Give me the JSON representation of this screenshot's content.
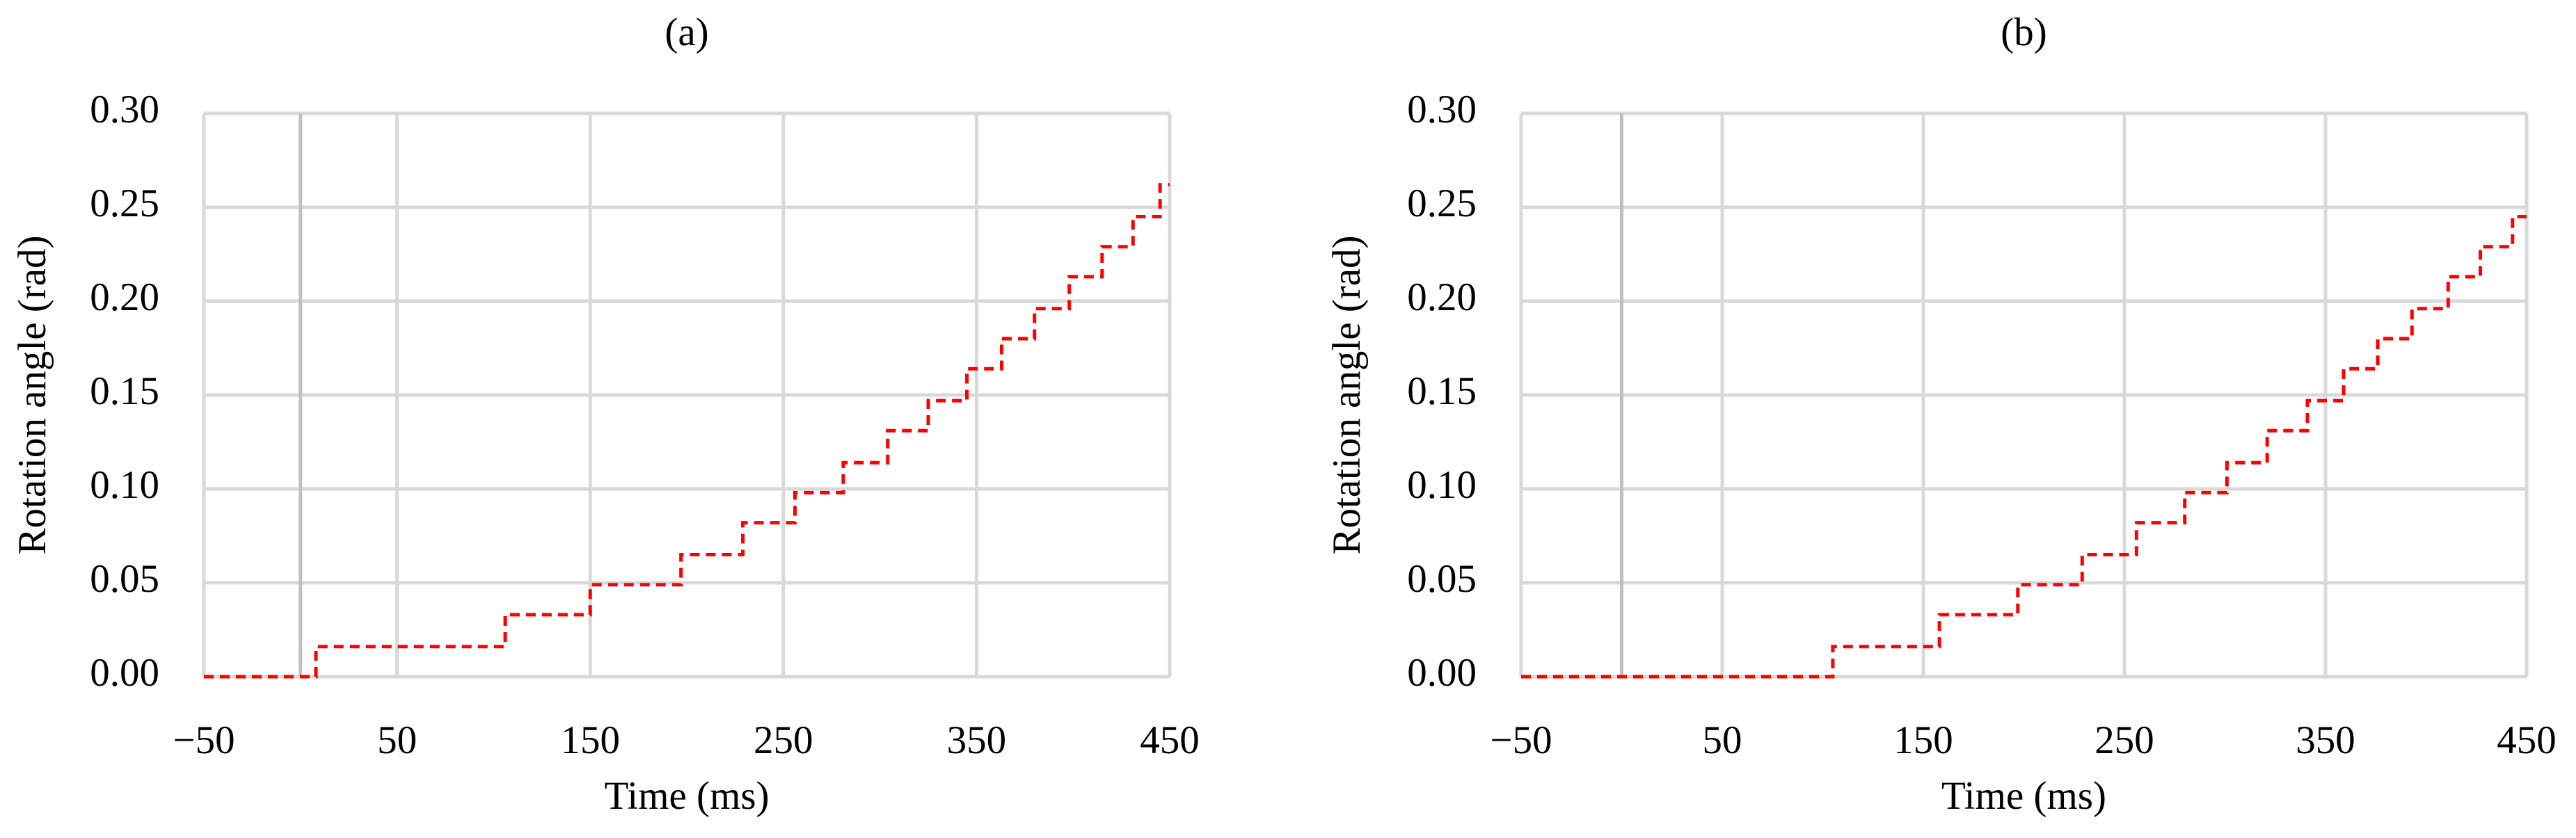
{
  "chart_data": [
    {
      "type": "line",
      "title": "(a)",
      "xlabel": "Time (ms)",
      "ylabel": "Rotation angle (rad)",
      "x": [
        -50,
        8,
        8,
        106,
        106,
        150,
        150,
        197,
        197,
        229,
        229,
        256,
        256,
        281,
        281,
        304,
        304,
        325,
        325,
        345,
        345,
        363,
        363,
        380,
        380,
        398,
        398,
        415,
        415,
        431,
        431,
        445,
        445,
        450
      ],
      "values": [
        0,
        0,
        0.016,
        0.016,
        0.033,
        0.033,
        0.049,
        0.049,
        0.065,
        0.065,
        0.082,
        0.082,
        0.098,
        0.098,
        0.114,
        0.114,
        0.131,
        0.131,
        0.147,
        0.147,
        0.164,
        0.164,
        0.18,
        0.18,
        0.196,
        0.196,
        0.213,
        0.213,
        0.229,
        0.229,
        0.245,
        0.245,
        0.262,
        0.262
      ],
      "color": "#ff0000",
      "dashed": true,
      "grid": true,
      "xlim": [
        -50,
        450
      ],
      "xticks": [
        {
          "value": -50,
          "label": "−50"
        },
        50,
        150,
        250,
        350,
        450
      ],
      "ylim": [
        0,
        0.3
      ],
      "yticks": [
        {
          "value": 0,
          "label": "0.00"
        },
        {
          "value": 0.05,
          "label": "0.05"
        },
        {
          "value": 0.1,
          "label": "0.10"
        },
        {
          "value": 0.15,
          "label": "0.15"
        },
        {
          "value": 0.2,
          "label": "0.20"
        },
        {
          "value": 0.25,
          "label": "0.25"
        },
        {
          "value": 0.3,
          "label": "0.30"
        }
      ]
    },
    {
      "type": "line",
      "title": "(b)",
      "xlabel": "Time (ms)",
      "ylabel": "Rotation angle (rad)",
      "x": [
        -50,
        105,
        105,
        158,
        158,
        197,
        197,
        229,
        229,
        256,
        256,
        280,
        280,
        301,
        301,
        321,
        321,
        341,
        341,
        359,
        359,
        376,
        376,
        393,
        393,
        411,
        411,
        427,
        427,
        443,
        443,
        450
      ],
      "values": [
        0,
        0,
        0.016,
        0.016,
        0.033,
        0.033,
        0.049,
        0.049,
        0.065,
        0.065,
        0.082,
        0.082,
        0.098,
        0.098,
        0.114,
        0.114,
        0.131,
        0.131,
        0.147,
        0.147,
        0.164,
        0.164,
        0.18,
        0.18,
        0.196,
        0.196,
        0.213,
        0.213,
        0.229,
        0.229,
        0.245,
        0.245
      ],
      "color": "#ff0000",
      "dashed": true,
      "grid": true,
      "xlim": [
        -50,
        450
      ],
      "xticks": [
        {
          "value": -50,
          "label": "−50"
        },
        50,
        150,
        250,
        350,
        450
      ],
      "ylim": [
        0,
        0.3
      ],
      "yticks": [
        {
          "value": 0,
          "label": "0.00"
        },
        {
          "value": 0.05,
          "label": "0.05"
        },
        {
          "value": 0.1,
          "label": "0.10"
        },
        {
          "value": 0.15,
          "label": "0.15"
        },
        {
          "value": 0.2,
          "label": "0.20"
        },
        {
          "value": 0.25,
          "label": "0.25"
        },
        {
          "value": 0.3,
          "label": "0.30"
        }
      ]
    }
  ]
}
